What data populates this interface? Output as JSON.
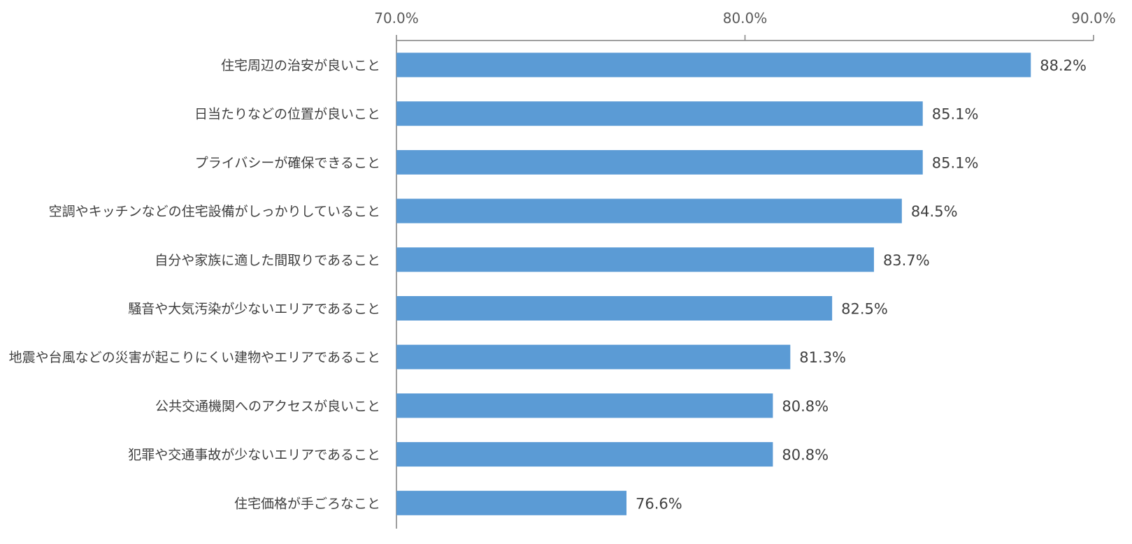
{
  "chart_data": {
    "type": "bar",
    "orientation": "horizontal",
    "categories": [
      "住宅周辺の治安が良いこと",
      "日当たりなどの位置が良いこと",
      "プライバシーが確保できること",
      "空調やキッチンなどの住宅設備がしっかりしていること",
      "自分や家族に適した間取りであること",
      "騒音や大気汚染が少ないエリアであること",
      "地震や台風などの災害が起こりにくい建物やエリアであること",
      "公共交通機関へのアクセスが良いこと",
      "犯罪や交通事故が少ないエリアであること",
      "住宅価格が手ごろなこと"
    ],
    "values": [
      88.2,
      85.1,
      85.1,
      84.5,
      83.7,
      82.5,
      81.3,
      80.8,
      80.8,
      76.6
    ],
    "data_labels": [
      "88.2%",
      "85.1%",
      "85.1%",
      "84.5%",
      "83.7%",
      "82.5%",
      "81.3%",
      "80.8%",
      "80.8%",
      "76.6%"
    ],
    "xlim": [
      70,
      90
    ],
    "x_ticks": [
      70,
      80,
      90
    ],
    "x_tick_labels": [
      "70.0%",
      "80.0%",
      "90.0%"
    ],
    "x_axis_position": "top",
    "title": "",
    "xlabel": "",
    "ylabel": "",
    "grid": false,
    "legend": "none",
    "bar_color": "#5B9BD5",
    "axis_color": "#808080"
  }
}
